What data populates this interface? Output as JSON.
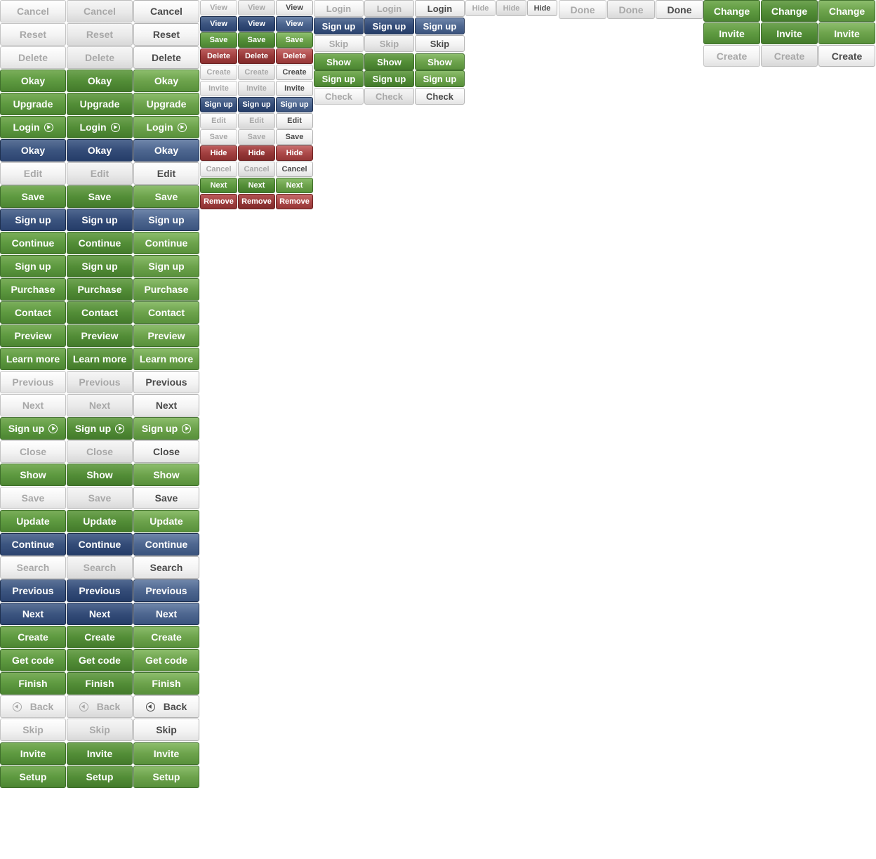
{
  "groups": [
    {
      "id": "large-column-set",
      "rows": [
        {
          "label": "Cancel",
          "color": "grey"
        },
        {
          "label": "Reset",
          "color": "grey"
        },
        {
          "label": "Delete",
          "color": "grey"
        },
        {
          "label": "Okay",
          "color": "green"
        },
        {
          "label": "Upgrade",
          "color": "green"
        },
        {
          "label": "Login",
          "color": "green",
          "icon": "play-circle-icon"
        },
        {
          "label": "Okay",
          "color": "blue"
        },
        {
          "label": "Edit",
          "color": "grey"
        },
        {
          "label": "Save",
          "color": "green"
        },
        {
          "label": "Sign up",
          "color": "blue"
        },
        {
          "label": "Continue",
          "color": "green"
        },
        {
          "label": "Sign up",
          "color": "green"
        },
        {
          "label": "Purchase",
          "color": "green"
        },
        {
          "label": "Contact",
          "color": "green"
        },
        {
          "label": "Preview",
          "color": "green"
        },
        {
          "label": "Learn more",
          "color": "green"
        },
        {
          "label": "Previous",
          "color": "grey"
        },
        {
          "label": "Next",
          "color": "grey"
        },
        {
          "label": "Sign up",
          "color": "green",
          "icon": "play-circle-icon"
        },
        {
          "label": "Close",
          "color": "grey"
        },
        {
          "label": "Show",
          "color": "green"
        },
        {
          "label": "Save",
          "color": "grey"
        },
        {
          "label": "Update",
          "color": "green"
        },
        {
          "label": "Continue",
          "color": "blue"
        },
        {
          "label": "Search",
          "color": "grey"
        },
        {
          "label": "Previous",
          "color": "blue"
        },
        {
          "label": "Next",
          "color": "blue"
        },
        {
          "label": "Create",
          "color": "green"
        },
        {
          "label": "Get code",
          "color": "green"
        },
        {
          "label": "Finish",
          "color": "green"
        },
        {
          "label": "Back",
          "color": "grey",
          "icon": "back-circle-icon"
        },
        {
          "label": "Skip",
          "color": "grey"
        },
        {
          "label": "Invite",
          "color": "green"
        },
        {
          "label": "Setup",
          "color": "green"
        }
      ]
    },
    {
      "id": "small-column-set",
      "rows": [
        {
          "label": "View",
          "color": "grey"
        },
        {
          "label": "View",
          "color": "blue"
        },
        {
          "label": "Save",
          "color": "green"
        },
        {
          "label": "Delete",
          "color": "red"
        },
        {
          "label": "Create",
          "color": "grey"
        },
        {
          "label": "Invite",
          "color": "grey"
        },
        {
          "label": "Sign up",
          "color": "blue"
        },
        {
          "label": "Edit",
          "color": "grey"
        },
        {
          "label": "Save",
          "color": "grey"
        },
        {
          "label": "Hide",
          "color": "red"
        },
        {
          "label": "Cancel",
          "color": "grey"
        },
        {
          "label": "Next",
          "color": "green"
        },
        {
          "label": "Remove",
          "color": "red"
        }
      ]
    },
    {
      "id": "medium-column-set",
      "rows": [
        {
          "label": "Login",
          "color": "grey"
        },
        {
          "label": "Sign up",
          "color": "blue"
        },
        {
          "label": "Skip",
          "color": "grey"
        },
        {
          "label": "Show",
          "color": "green"
        },
        {
          "label": "Sign up",
          "color": "green"
        },
        {
          "label": "Check",
          "color": "grey"
        }
      ]
    },
    {
      "id": "mini-hide-set",
      "rows": [
        {
          "label": "Hide",
          "color": "grey"
        }
      ]
    },
    {
      "id": "done-set",
      "rows": [
        {
          "label": "Done",
          "color": "grey"
        }
      ]
    },
    {
      "id": "right-column-set",
      "rows": [
        {
          "label": "Change",
          "color": "green"
        },
        {
          "label": "Invite",
          "color": "green"
        },
        {
          "label": "Create",
          "color": "grey"
        }
      ]
    }
  ],
  "colors": {
    "grey_text": "#a8a8a8",
    "grey_text_active": "#4a4a4a",
    "green": "#5e9a40",
    "blue": "#3c5580",
    "red": "#a24040",
    "background": "#ffffff"
  }
}
